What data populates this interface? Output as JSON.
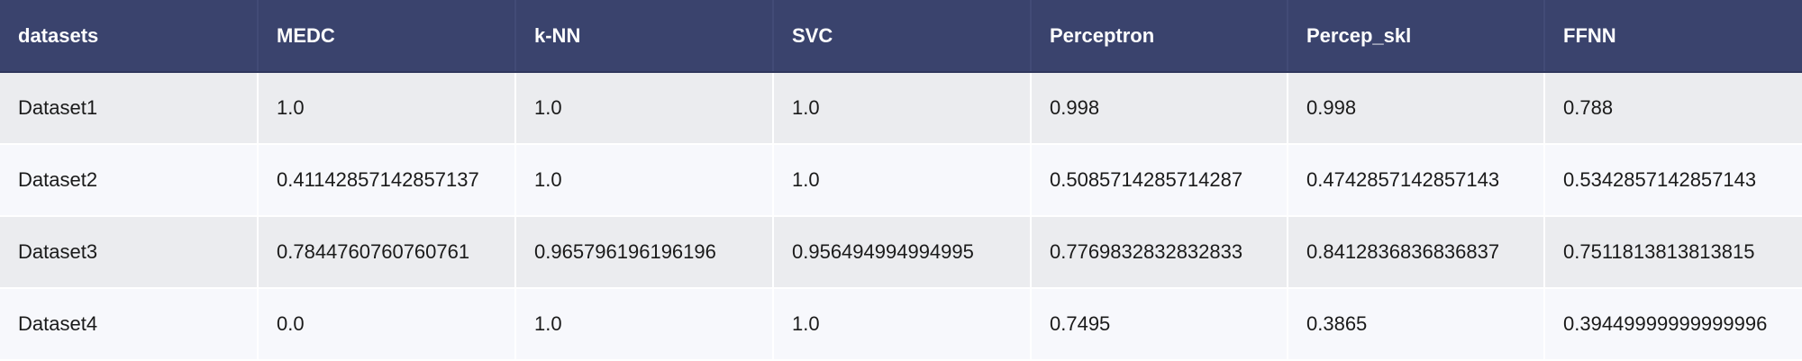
{
  "chart_data": {
    "type": "table",
    "columns": [
      "datasets",
      "MEDC",
      "k-NN",
      "SVC",
      "Perceptron",
      "Percep_skl",
      "FFNN"
    ],
    "rows": [
      [
        "Dataset1",
        "1.0",
        "1.0",
        "1.0",
        "0.998",
        "0.998",
        "0.788"
      ],
      [
        "Dataset2",
        "0.41142857142857137",
        "1.0",
        "1.0",
        "0.5085714285714287",
        "0.4742857142857143",
        "0.5342857142857143"
      ],
      [
        "Dataset3",
        "0.7844760760760761",
        "0.965796196196196",
        "0.956494994994995",
        "0.7769832832832833",
        "0.8412836836836837",
        "0.7511813813813815"
      ],
      [
        "Dataset4",
        "0.0",
        "1.0",
        "1.0",
        "0.7495",
        "0.3865",
        "0.39449999999999996"
      ]
    ]
  },
  "colors": {
    "header_background": "#3a436d",
    "header_text": "#ffffff",
    "row_odd_background": "#ebecef",
    "row_even_background": "#f7f8fc",
    "cell_text": "#1a1a1a"
  }
}
